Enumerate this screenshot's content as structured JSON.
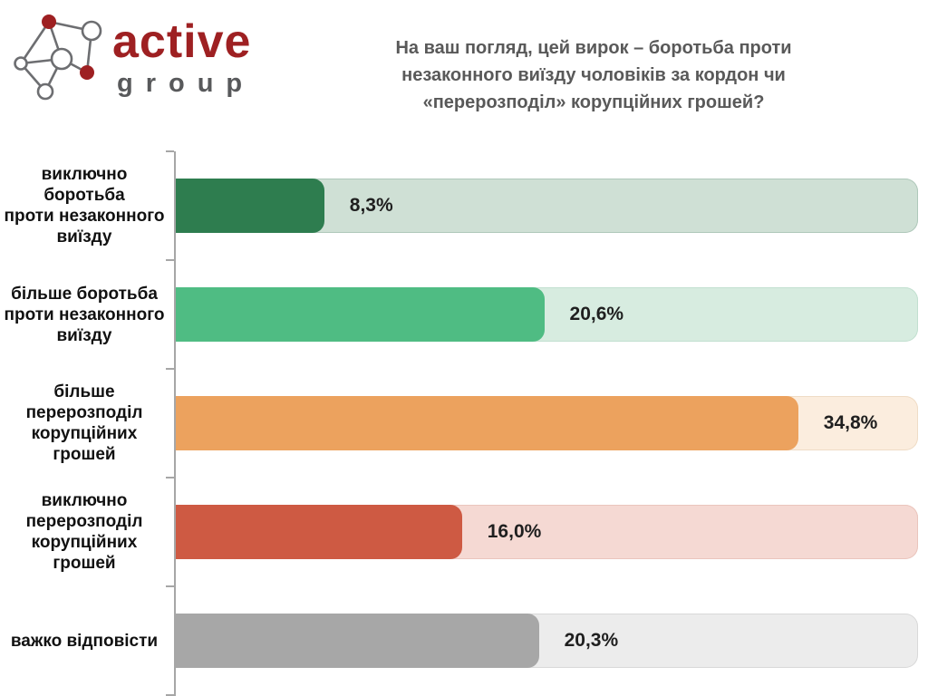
{
  "logo": {
    "brand": "active",
    "sub": "group",
    "accent_color": "#9E2022",
    "gray_color": "#58595B"
  },
  "title": {
    "lines": [
      "На ваш погляд, цей вирок – боротьба проти",
      "незаконного виїзду чоловіків за кордон чи",
      "«перерозподіл» корупційних грошей?"
    ]
  },
  "chart_data": {
    "type": "bar",
    "orientation": "horizontal",
    "title": "На ваш погляд, цей вирок – боротьба проти незаконного виїзду чоловіків за кордон чи «перерозподіл» корупційних грошей?",
    "categories": [
      "виключно боротьба\nпроти незаконного\nвиїзду",
      "більше боротьба\nпроти незаконного\nвиїзду",
      "більше\nперерозподіл\nкорупційних\nгрошей",
      "виключно\nперерозподіл\nкорупційних\nгрошей",
      "важко відповісти"
    ],
    "values": [
      8.3,
      20.6,
      34.8,
      16.0,
      20.3
    ],
    "value_labels": [
      "8,3%",
      "20,6%",
      "34,8%",
      "16,0%",
      "20,3%"
    ],
    "axis_max": 41.5,
    "grid": false,
    "legend": false,
    "bar_colors": [
      "#2E7D4F",
      "#4FBC83",
      "#ECA25E",
      "#CE5A43",
      "#A7A7A7"
    ],
    "track_colors": [
      "#CFE0D5",
      "#D7ECE0",
      "#FBEDDE",
      "#F5D9D3",
      "#ECECEC"
    ],
    "track_border_colors": [
      "#AFC8BA",
      "#C2E0D0",
      "#EFDCC6",
      "#EAC5BD",
      "#D9D9D9"
    ],
    "axis_color": "#A6A6A6"
  }
}
